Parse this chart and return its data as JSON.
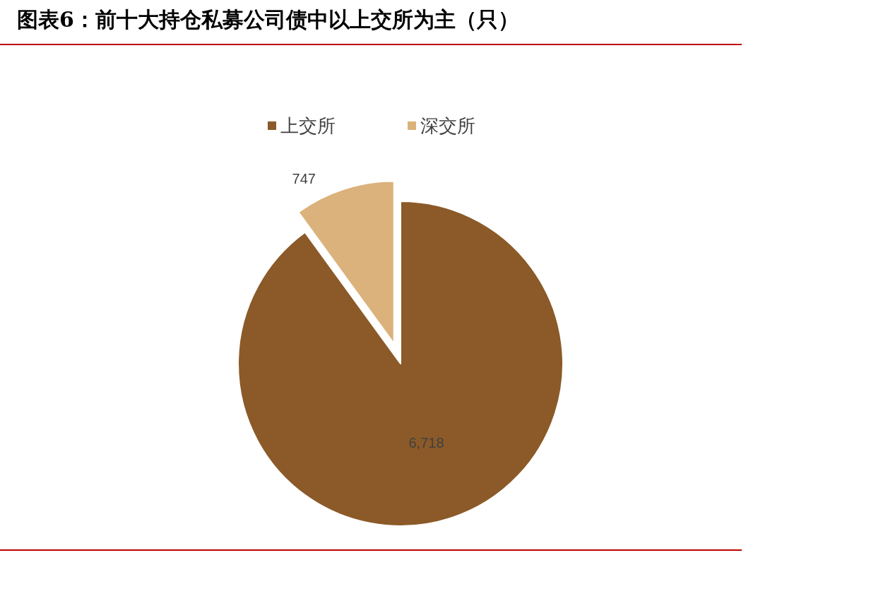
{
  "chart_data": {
    "type": "pie",
    "title": "图表6：前十大持仓私募公司债中以上交所为主（只）",
    "categories": [
      "上交所",
      "深交所"
    ],
    "values": [
      6718,
      747
    ],
    "value_labels": [
      "6,718",
      "747"
    ],
    "colors": [
      "#8b5a28",
      "#dbb27c"
    ],
    "legend": "top"
  }
}
